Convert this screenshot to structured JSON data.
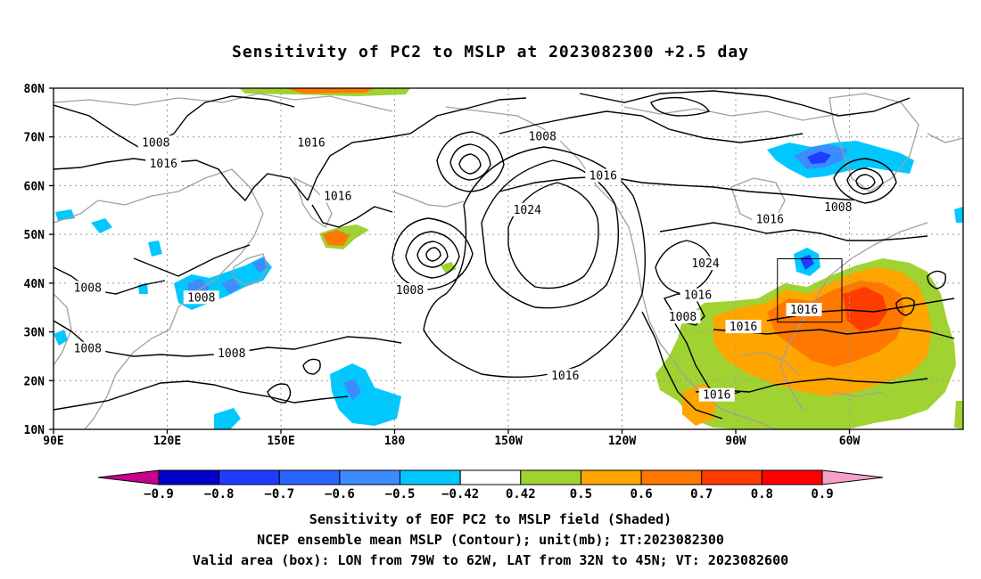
{
  "title": "Sensitivity of PC2 to MSLP at 2023082300 +2.5 day",
  "lat_labels": [
    "80N",
    "70N",
    "60N",
    "50N",
    "40N",
    "30N",
    "20N",
    "10N"
  ],
  "lon_labels": [
    "90E",
    "120E",
    "150E",
    "180",
    "150W",
    "120W",
    "90W",
    "60W"
  ],
  "contour_labels": [
    {
      "text": "1008",
      "lon": 117,
      "lat": 68.8
    },
    {
      "text": "1016",
      "lon": 119,
      "lat": 64.5
    },
    {
      "text": "1016",
      "lon": 158,
      "lat": 68.8
    },
    {
      "text": "1016",
      "lon": 165,
      "lat": 57.8
    },
    {
      "text": "1008",
      "lon": 219,
      "lat": 70.0
    },
    {
      "text": "1016",
      "lon": 235,
      "lat": 62.0
    },
    {
      "text": "1024",
      "lon": 215,
      "lat": 55.0
    },
    {
      "text": "1016",
      "lon": 279,
      "lat": 53.0
    },
    {
      "text": "1008",
      "lon": 297,
      "lat": 55.5
    },
    {
      "text": "1024",
      "lon": 262,
      "lat": 44.0
    },
    {
      "text": "1016",
      "lon": 260,
      "lat": 37.5
    },
    {
      "text": "1008",
      "lon": 256,
      "lat": 33.0
    },
    {
      "text": "1008",
      "lon": 99,
      "lat": 39.0
    },
    {
      "text": "1008",
      "lon": 129,
      "lat": 37.0
    },
    {
      "text": "1008",
      "lon": 99,
      "lat": 26.5
    },
    {
      "text": "1008",
      "lon": 137,
      "lat": 25.5
    },
    {
      "text": "1008",
      "lon": 184,
      "lat": 38.5
    },
    {
      "text": "1016",
      "lon": 225,
      "lat": 21.0
    },
    {
      "text": "1016",
      "lon": 272,
      "lat": 31.0
    },
    {
      "text": "1016",
      "lon": 288,
      "lat": 34.5
    },
    {
      "text": "1016",
      "lon": 265,
      "lat": 17.0
    }
  ],
  "valid_box": {
    "lon_west": -79,
    "lon_east": -62,
    "lat_south": 32,
    "lat_north": 45
  },
  "colorbar": {
    "labels": [
      "-0.9",
      "-0.8",
      "-0.7",
      "-0.6",
      "-0.5",
      "-0.42",
      "0.42",
      "0.5",
      "0.6",
      "0.7",
      "0.8",
      "0.9"
    ],
    "colors": [
      "#c8008c",
      "#0000c8",
      "#1e3cff",
      "#2864ff",
      "#3c8cff",
      "#00c8ff",
      "#ffffff",
      "#a0d232",
      "#ffa500",
      "#ff7800",
      "#ff3c00",
      "#ff0000",
      "#f5a0c8"
    ]
  },
  "captions": {
    "line1": "Sensitivity of EOF PC2 to MSLP field (Shaded)",
    "line2": "NCEP ensemble mean MSLP (Contour); unit(mb); IT:2023082300",
    "line3": "Valid area (box): LON from 79W to 62W, LAT from 32N to 45N; VT: 2023082600"
  },
  "colors": {
    "contour": "#000000",
    "coastline": "#a0a0a0",
    "grid": "#9a9a9a",
    "green": "#a0d232",
    "orange": "#ffa500",
    "dark_orange": "#ff7800",
    "light_blue": "#00c8ff",
    "blue": "#3c8cff",
    "red_orange": "#ff3c00"
  }
}
